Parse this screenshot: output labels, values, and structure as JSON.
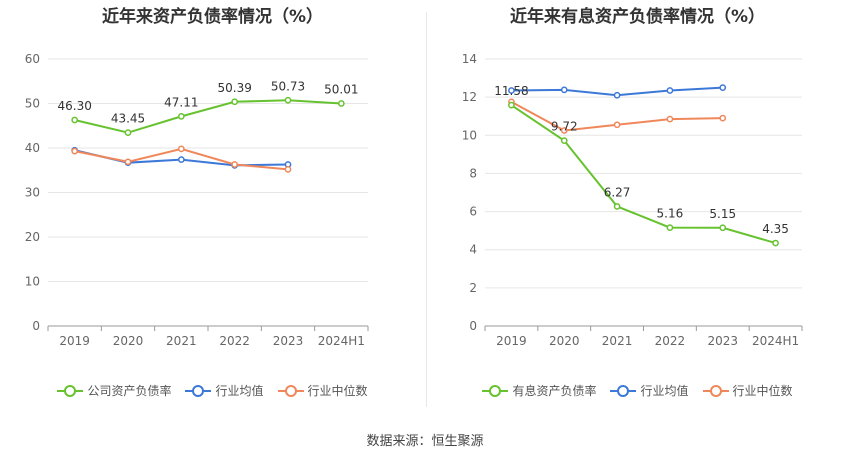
{
  "source_label": "数据来源：恒生聚源",
  "chart_data": [
    {
      "type": "line",
      "title": "近年来资产负债率情况（%）",
      "categories": [
        "2019",
        "2020",
        "2021",
        "2022",
        "2023",
        "2024H1"
      ],
      "ylim": [
        0,
        60
      ],
      "yticks": [
        "0",
        "10",
        "20",
        "30",
        "40",
        "50",
        "60"
      ],
      "grid": true,
      "legend_placement": "bottom",
      "series": [
        {
          "name": "公司资产负债率",
          "color": "#66c22e",
          "values": [
            46.3,
            43.45,
            47.11,
            50.39,
            50.73,
            50.01
          ],
          "labels": [
            "46.30",
            "43.45",
            "47.11",
            "50.39",
            "50.73",
            "50.01"
          ]
        },
        {
          "name": "行业均值",
          "color": "#3c78d8",
          "values": [
            39.5,
            36.7,
            37.4,
            36.1,
            36.3,
            null
          ],
          "labels": []
        },
        {
          "name": "行业中位数",
          "color": "#f0875a",
          "values": [
            39.3,
            36.9,
            39.8,
            36.3,
            35.2,
            null
          ],
          "labels": []
        }
      ]
    },
    {
      "type": "line",
      "title": "近年来有息资产负债率情况（%）",
      "categories": [
        "2019",
        "2020",
        "2021",
        "2022",
        "2023",
        "2024H1"
      ],
      "ylim": [
        0,
        14
      ],
      "yticks": [
        "0",
        "2",
        "4",
        "6",
        "8",
        "10",
        "12",
        "14"
      ],
      "grid": true,
      "legend_placement": "bottom",
      "series": [
        {
          "name": "有息资产负债率",
          "color": "#66c22e",
          "values": [
            11.58,
            9.72,
            6.27,
            5.16,
            5.15,
            4.35
          ],
          "labels": [
            "11.58",
            "9.72",
            "6.27",
            "5.16",
            "5.15",
            "4.35"
          ]
        },
        {
          "name": "行业均值",
          "color": "#3c78d8",
          "values": [
            12.35,
            12.38,
            12.1,
            12.35,
            12.5,
            null
          ],
          "labels": []
        },
        {
          "name": "行业中位数",
          "color": "#f0875a",
          "values": [
            11.75,
            10.25,
            10.55,
            10.85,
            10.9,
            null
          ],
          "labels": []
        }
      ]
    }
  ]
}
